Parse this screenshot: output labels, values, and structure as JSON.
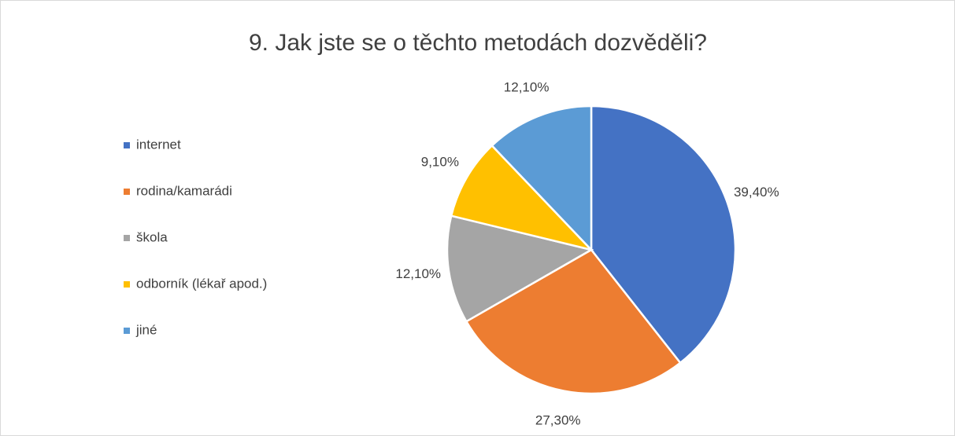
{
  "chart_data": {
    "type": "pie",
    "title": "9. Jak jste se o těchto metodách dozvěděli?",
    "categories": [
      "internet",
      "rodina/kamarádi",
      "škola",
      "odborník (lékař apod.)",
      "jiné"
    ],
    "values": [
      39.4,
      27.3,
      12.1,
      9.1,
      12.1
    ],
    "value_labels": [
      "39,40%",
      "27,30%",
      "12,10%",
      "9,10%",
      "12,10%"
    ],
    "colors": [
      "#4472c4",
      "#ed7d31",
      "#a5a5a5",
      "#ffc000",
      "#5b9bd5"
    ],
    "legend": "left"
  }
}
